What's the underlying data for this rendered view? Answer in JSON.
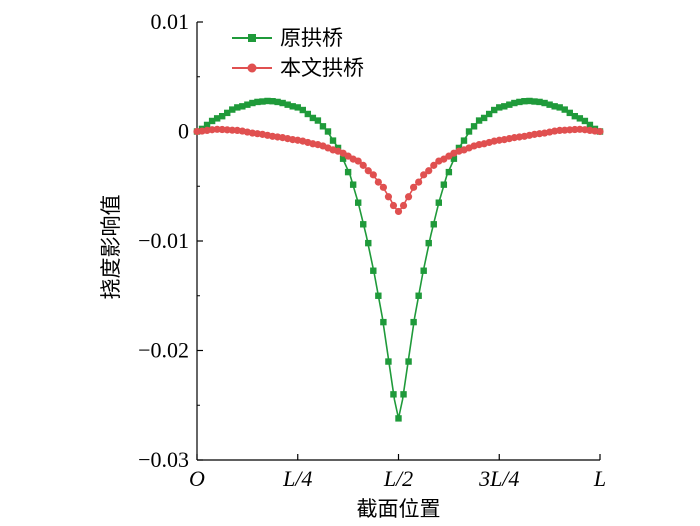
{
  "chart_data": {
    "type": "line",
    "xlabel": "截面位置",
    "ylabel": "挠度影响值",
    "x_ticks": [
      "O",
      "L/4",
      "L/2",
      "3L/4",
      "L"
    ],
    "y_ticks": [
      "0.01",
      "0",
      "−0.01",
      "−0.02",
      "−0.03"
    ],
    "y_tick_values": [
      0.01,
      0,
      -0.01,
      -0.02,
      -0.03
    ],
    "xlim": [
      0,
      1
    ],
    "ylim": [
      -0.03,
      0.01
    ],
    "legend_position": "top-left",
    "series": [
      {
        "name": "原拱桥",
        "color": "#1f9a3a",
        "marker": "square",
        "x": [
          0,
          0.05,
          0.1,
          0.15,
          0.18,
          0.2,
          0.25,
          0.3,
          0.32,
          0.35,
          0.38,
          0.4,
          0.42,
          0.44,
          0.46,
          0.48,
          0.49,
          0.5,
          0.51,
          0.52,
          0.54,
          0.56,
          0.58,
          0.6,
          0.62,
          0.65,
          0.68,
          0.7,
          0.75,
          0.8,
          0.82,
          0.85,
          0.9,
          0.95,
          1
        ],
        "y": [
          0,
          0.0012,
          0.0022,
          0.0027,
          0.0028,
          0.0027,
          0.0022,
          0.001,
          0.0002,
          -0.0015,
          -0.004,
          -0.0065,
          -0.0095,
          -0.013,
          -0.017,
          -0.022,
          -0.0245,
          -0.0262,
          -0.0245,
          -0.022,
          -0.017,
          -0.013,
          -0.0095,
          -0.0065,
          -0.004,
          -0.0015,
          0.0002,
          0.001,
          0.0022,
          0.0027,
          0.0028,
          0.0027,
          0.0022,
          0.0012,
          0
        ]
      },
      {
        "name": "本文拱桥",
        "color": "#e05050",
        "marker": "circle",
        "x": [
          0,
          0.05,
          0.1,
          0.15,
          0.2,
          0.25,
          0.3,
          0.35,
          0.4,
          0.43,
          0.46,
          0.48,
          0.49,
          0.5,
          0.51,
          0.52,
          0.54,
          0.57,
          0.6,
          0.65,
          0.7,
          0.75,
          0.8,
          0.85,
          0.9,
          0.95,
          1
        ],
        "y": [
          0,
          0.0002,
          0.0001,
          -0.0002,
          -0.0005,
          -0.0008,
          -0.0012,
          -0.0018,
          -0.0027,
          -0.0037,
          -0.005,
          -0.0062,
          -0.0069,
          -0.0073,
          -0.0069,
          -0.0062,
          -0.005,
          -0.0037,
          -0.0027,
          -0.0018,
          -0.0012,
          -0.0008,
          -0.0005,
          -0.0002,
          0.0001,
          0.0002,
          0
        ]
      }
    ]
  }
}
